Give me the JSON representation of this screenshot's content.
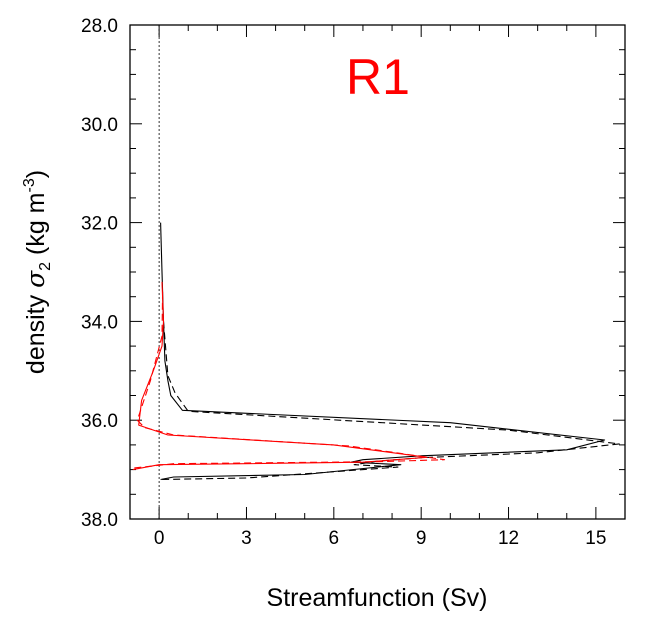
{
  "chart_data": {
    "type": "line",
    "annotation": "R1",
    "colors": {
      "annotation": "#ff0000",
      "red_series": "#ff0000",
      "black_series": "#000000"
    },
    "xlabel": "Streamfunction (Sv)",
    "ylabel": {
      "prefix": "density ",
      "symbol": "σ",
      "subscript": "2",
      "unit_open": " (kg m",
      "unit_exp": "-3",
      "unit_close": ")"
    },
    "xlim": [
      -1,
      16
    ],
    "ylim": [
      38.0,
      28.0
    ],
    "y_inverted": true,
    "x_ticks": [
      0,
      3,
      6,
      9,
      12,
      15
    ],
    "x_tick_labels": [
      "0",
      "3",
      "6",
      "9",
      "12",
      "15"
    ],
    "y_ticks": [
      28,
      30,
      32,
      34,
      36,
      38
    ],
    "y_tick_labels": [
      "28.0",
      "30.0",
      "32.0",
      "34.0",
      "36.0",
      "38.0"
    ],
    "zero_line": {
      "x": 0,
      "style": "dotted"
    },
    "series": [
      {
        "color": "black",
        "style": "solid",
        "points": [
          [
            0.05,
            32.0
          ],
          [
            0.1,
            33.0
          ],
          [
            0.15,
            34.0
          ],
          [
            0.2,
            34.8
          ],
          [
            0.3,
            35.2
          ],
          [
            0.4,
            35.5
          ],
          [
            0.8,
            35.8
          ],
          [
            10,
            36.05
          ],
          [
            15.3,
            36.4
          ],
          [
            14,
            36.6
          ],
          [
            9,
            36.72
          ],
          [
            7,
            36.8
          ],
          [
            6.6,
            36.85
          ],
          [
            8.3,
            36.9
          ],
          [
            5,
            37.1
          ],
          [
            0.5,
            37.15
          ],
          [
            0.05,
            37.2
          ]
        ]
      },
      {
        "color": "black",
        "style": "dashed",
        "points": [
          [
            0.15,
            34.0
          ],
          [
            0.3,
            35.1
          ],
          [
            0.55,
            35.45
          ],
          [
            1.0,
            35.82
          ],
          [
            12,
            36.2
          ],
          [
            15.8,
            36.48
          ],
          [
            13,
            36.66
          ],
          [
            9,
            36.76
          ],
          [
            7.5,
            36.83
          ],
          [
            6.7,
            36.9
          ],
          [
            8.2,
            36.95
          ],
          [
            3,
            37.17
          ],
          [
            0.05,
            37.2
          ]
        ]
      },
      {
        "color": "red",
        "style": "solid",
        "points": [
          [
            0.1,
            33.2
          ],
          [
            0.15,
            34.0
          ],
          [
            0.1,
            34.5
          ],
          [
            -0.2,
            35.0
          ],
          [
            -0.6,
            35.6
          ],
          [
            -0.7,
            36.1
          ],
          [
            0.3,
            36.3
          ],
          [
            6,
            36.5
          ],
          [
            9.2,
            36.75
          ],
          [
            7,
            36.85
          ],
          [
            0,
            36.9
          ],
          [
            -0.9,
            37.0
          ]
        ]
      },
      {
        "color": "red",
        "style": "dashed",
        "points": [
          [
            0.12,
            33.4
          ],
          [
            0.1,
            34.3
          ],
          [
            -0.3,
            35.2
          ],
          [
            -0.75,
            36.0
          ],
          [
            -0.5,
            36.15
          ],
          [
            0.5,
            36.3
          ],
          [
            6.5,
            36.52
          ],
          [
            9.8,
            36.8
          ],
          [
            7.5,
            36.84
          ],
          [
            0.5,
            36.88
          ],
          [
            -0.9,
            36.97
          ]
        ]
      }
    ]
  }
}
